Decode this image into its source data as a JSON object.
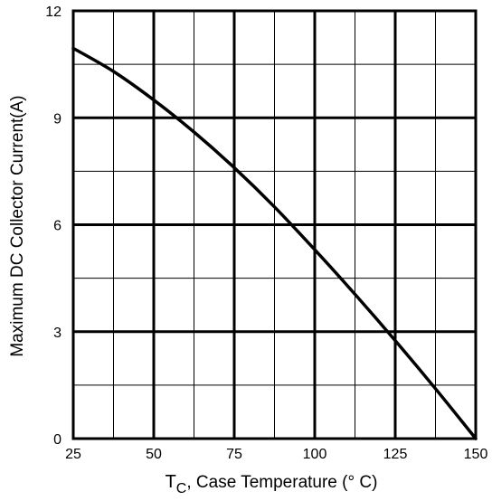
{
  "chart_data": {
    "type": "line",
    "xlabel_main": "T",
    "xlabel_sub": "C",
    "xlabel_rest": ", Case Temperature (° C)",
    "ylabel": "Maximum DC Collector Current(A)",
    "xlim": [
      25,
      150
    ],
    "ylim": [
      0,
      12
    ],
    "xticks": [
      25,
      50,
      75,
      100,
      125,
      150
    ],
    "yticks": [
      0,
      3,
      6,
      9,
      12
    ],
    "x_minor_gridlines": [
      37.5,
      62.5,
      87.5,
      112.5,
      137.5
    ],
    "y_minor_gridlines": [
      1.5,
      4.5,
      7.5,
      10.5
    ],
    "grid": true,
    "series": [
      {
        "x": [
          25,
          37.5,
          50,
          62.5,
          75,
          87.5,
          100,
          112.5,
          125,
          137.5,
          150
        ],
        "y": [
          10.95,
          10.3,
          9.5,
          8.6,
          7.6,
          6.5,
          5.3,
          4.05,
          2.75,
          1.4,
          0
        ]
      }
    ]
  }
}
